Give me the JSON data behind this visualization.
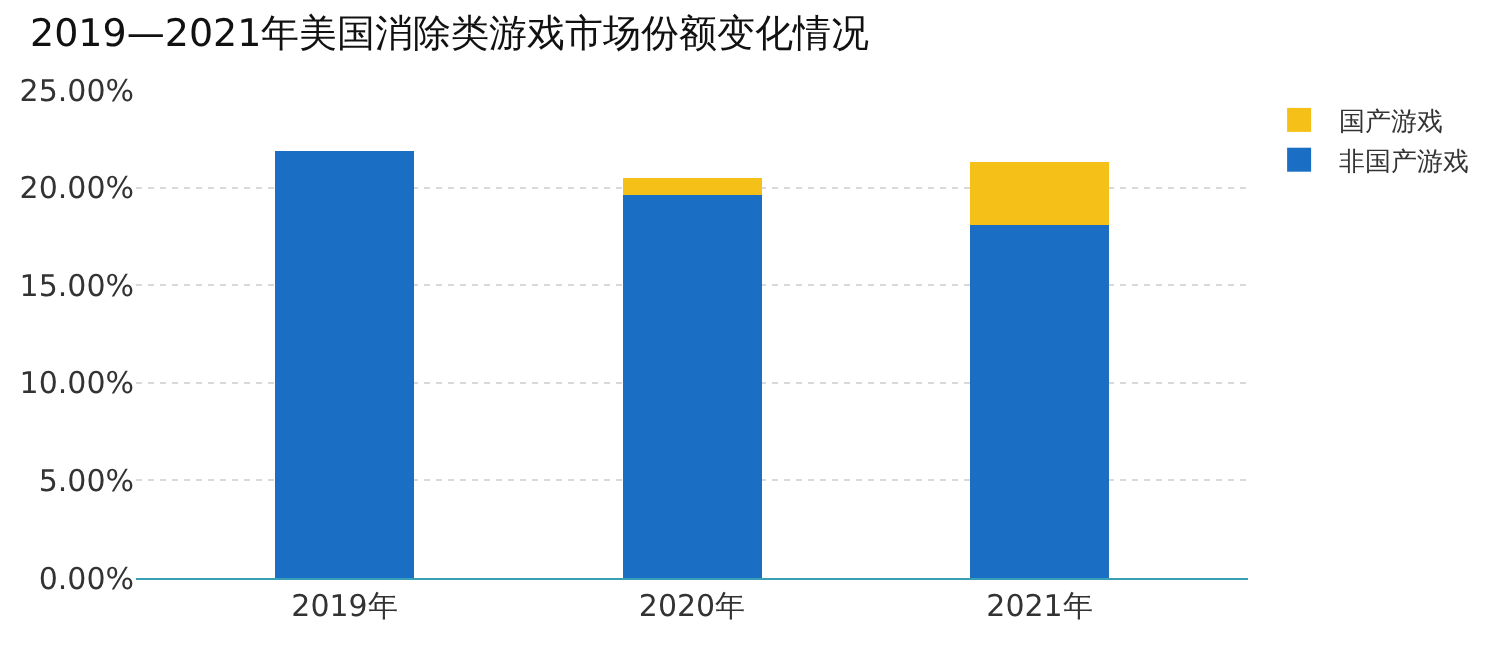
{
  "chart_data": {
    "type": "bar",
    "title": "2019—2021年美国消除类游戏市场份额变化情况",
    "categories": [
      "2019年",
      "2020年",
      "2021年"
    ],
    "series": [
      {
        "name": "非国产游戏",
        "color": "#1a6fc4",
        "values": [
          21.9,
          19.6,
          18.1
        ]
      },
      {
        "name": "国产游戏",
        "color": "#f5c118",
        "values": [
          0,
          0.9,
          3.2
        ]
      }
    ],
    "stacked": true,
    "ylim": [
      0,
      25
    ],
    "yticks": [
      {
        "value": 0,
        "label": "0.00%"
      },
      {
        "value": 5,
        "label": "5.00%"
      },
      {
        "value": 10,
        "label": "10.00%"
      },
      {
        "value": 15,
        "label": "15.00%"
      },
      {
        "value": 20,
        "label": "20.00%"
      },
      {
        "value": 25,
        "label": "25.00%"
      }
    ],
    "grid": "y",
    "legend": "top right"
  }
}
